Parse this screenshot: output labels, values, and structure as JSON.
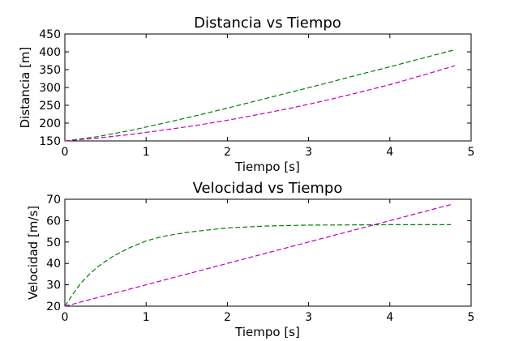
{
  "chart_data": [
    {
      "type": "line",
      "title": "Distancia vs Tiempo",
      "xlabel": "Tiempo [s]",
      "ylabel": "Distancia [m]",
      "xlim": [
        0,
        5
      ],
      "ylim": [
        150,
        450
      ],
      "xticks": [
        0,
        1,
        2,
        3,
        4,
        5
      ],
      "yticks": [
        150,
        200,
        250,
        300,
        350,
        400,
        450
      ],
      "grid": false,
      "x": [
        0,
        0.4,
        0.8,
        1.2,
        1.6,
        2.0,
        2.4,
        2.8,
        3.2,
        3.6,
        4.0,
        4.4,
        4.8
      ],
      "series": [
        {
          "color": "#008000",
          "style": "dashed",
          "values": [
            150,
            162,
            179,
            199,
            220,
            242,
            265,
            288,
            311,
            335,
            358,
            382,
            406
          ]
        },
        {
          "color": "#bf00bf",
          "style": "dashed",
          "values": [
            150,
            158,
            168,
            180,
            193,
            208,
            225,
            243,
            263,
            285,
            308,
            334,
            361
          ]
        }
      ]
    },
    {
      "type": "line",
      "title": "Velocidad vs Tiempo",
      "xlabel": "Tiempo [s]",
      "ylabel": "Velocidad [m/s]",
      "xlim": [
        0,
        5
      ],
      "ylim": [
        20,
        70
      ],
      "xticks": [
        0,
        1,
        2,
        3,
        4,
        5
      ],
      "yticks": [
        20,
        30,
        40,
        50,
        60,
        70
      ],
      "grid": false,
      "x": [
        0,
        0.1,
        0.2,
        0.3,
        0.4,
        0.5,
        0.6,
        0.8,
        1.0,
        1.2,
        1.5,
        1.8,
        2.0,
        2.5,
        3.0,
        3.5,
        4.0,
        4.5,
        4.75
      ],
      "series": [
        {
          "color": "#008000",
          "style": "dashed",
          "values": [
            20,
            25.7,
            30.9,
            34.9,
            38.3,
            41.0,
            43.5,
            47.4,
            50.5,
            52.6,
            54.5,
            55.8,
            56.6,
            57.5,
            57.9,
            58.0,
            58.1,
            58.1,
            58.1
          ]
        },
        {
          "color": "#bf00bf",
          "style": "dashed",
          "values": [
            20,
            21,
            22,
            23,
            24,
            25,
            26,
            28,
            30,
            32,
            35,
            38,
            40,
            45,
            50,
            55,
            60,
            65,
            67.5
          ]
        }
      ]
    }
  ]
}
